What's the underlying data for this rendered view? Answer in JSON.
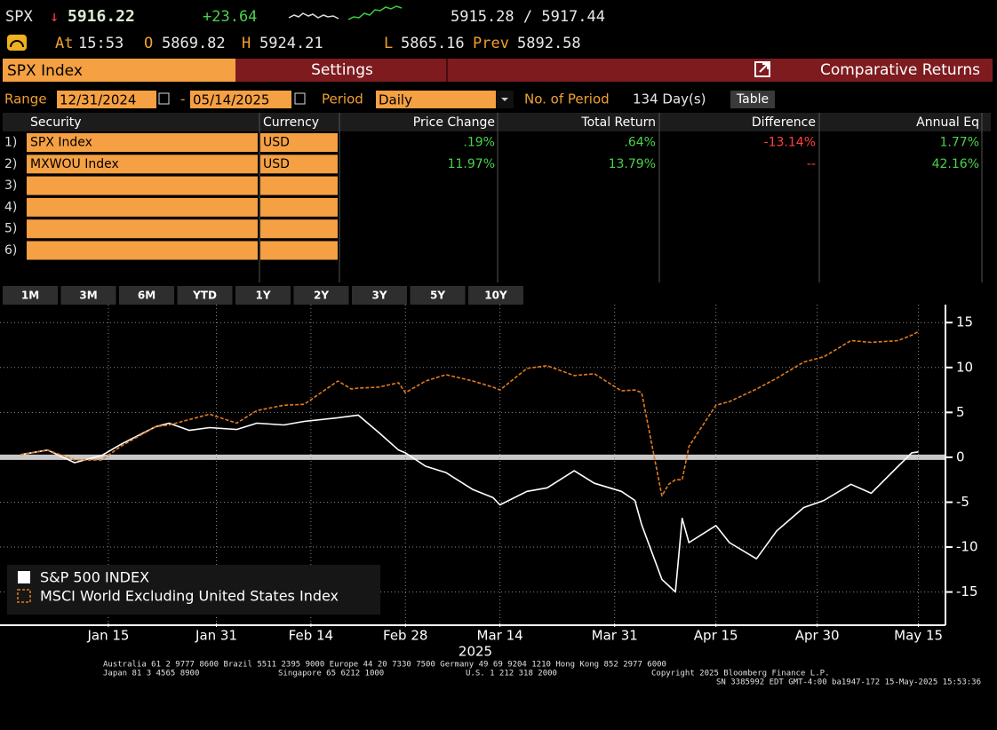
{
  "header": {
    "ticker": "SPX",
    "direction": "↓",
    "last": "5916.22",
    "change": "+23.64",
    "bid_ask": "5915.28 / 5917.44",
    "time_label": "At",
    "time": "15:53",
    "open_label": "O",
    "open": "5869.82",
    "high_label": "H",
    "high": "5924.21",
    "low_label": "L",
    "low": "5865.16",
    "prev_label": "Prev",
    "prev": "5892.58"
  },
  "toolbar": {
    "security_tab": "SPX Index",
    "settings_tab": "Settings",
    "function_title": "Comparative Returns"
  },
  "controls": {
    "range_label": "Range",
    "start_date": "12/31/2024",
    "range_separator": "-",
    "end_date": "05/14/2025",
    "period_label": "Period",
    "period": "Daily",
    "periods_label": "No. of Period",
    "periods": "134 Day(s)",
    "table_button": "Table"
  },
  "table": {
    "columns": [
      "Security",
      "Currency",
      "Price Change",
      "Total Return",
      "Difference",
      "Annual Eq"
    ],
    "rows": [
      {
        "num": "1)",
        "security": "SPX Index",
        "currency": "USD",
        "price_change": ".19%",
        "total_return": ".64%",
        "difference": "-13.14%",
        "annual_eq": "1.77%"
      },
      {
        "num": "2)",
        "security": "MXWOU Index",
        "currency": "USD",
        "price_change": "11.97%",
        "total_return": "13.79%",
        "difference": "--",
        "annual_eq": "42.16%"
      },
      {
        "num": "3)"
      },
      {
        "num": "4)"
      },
      {
        "num": "5)"
      },
      {
        "num": "6)"
      }
    ]
  },
  "range_buttons": [
    "1M",
    "3M",
    "6M",
    "YTD",
    "1Y",
    "2Y",
    "3Y",
    "5Y",
    "10Y"
  ],
  "chart_data": {
    "type": "line",
    "x": [
      "2025-01-02",
      "2025-01-06",
      "2025-01-10",
      "2025-01-14",
      "2025-01-17",
      "2025-01-22",
      "2025-01-24",
      "2025-01-27",
      "2025-01-30",
      "2025-02-03",
      "2025-02-06",
      "2025-02-10",
      "2025-02-13",
      "2025-02-18",
      "2025-02-20",
      "2025-02-21",
      "2025-02-24",
      "2025-02-27",
      "2025-02-28",
      "2025-03-03",
      "2025-03-06",
      "2025-03-10",
      "2025-03-13",
      "2025-03-14",
      "2025-03-18",
      "2025-03-21",
      "2025-03-25",
      "2025-03-28",
      "2025-04-01",
      "2025-04-03",
      "2025-04-04",
      "2025-04-07",
      "2025-04-08",
      "2025-04-09",
      "2025-04-10",
      "2025-04-11",
      "2025-04-15",
      "2025-04-17",
      "2025-04-21",
      "2025-04-24",
      "2025-04-28",
      "2025-05-01",
      "2025-05-05",
      "2025-05-08",
      "2025-05-12",
      "2025-05-14",
      "2025-05-15"
    ],
    "series": [
      {
        "name": "S&P 500 INDEX",
        "color": "#ffffff",
        "style": "solid",
        "values": [
          0.3,
          0.8,
          -0.6,
          0.2,
          1.5,
          3.4,
          3.8,
          3.0,
          3.3,
          3.1,
          3.8,
          3.6,
          4.0,
          4.4,
          4.6,
          4.7,
          2.8,
          0.8,
          0.5,
          -1.0,
          -1.7,
          -3.6,
          -4.5,
          -5.3,
          -3.8,
          -3.4,
          -1.5,
          -2.9,
          -3.8,
          -4.8,
          -7.5,
          -13.6,
          -14.3,
          -15.0,
          -6.8,
          -9.5,
          -7.6,
          -9.5,
          -11.3,
          -8.2,
          -5.6,
          -4.8,
          -3.0,
          -4.0,
          -1.0,
          0.5,
          0.6
        ]
      },
      {
        "name": "MSCI World Excluding United States Index",
        "color": "#e07b22",
        "style": "dashed",
        "values": [
          0.3,
          0.8,
          -0.3,
          -0.3,
          1.3,
          3.4,
          3.6,
          4.2,
          4.8,
          3.8,
          5.2,
          5.8,
          5.9,
          8.5,
          7.6,
          7.7,
          7.8,
          8.3,
          7.2,
          8.5,
          9.2,
          8.5,
          7.8,
          7.5,
          9.9,
          10.2,
          9.1,
          9.3,
          7.4,
          7.5,
          7.2,
          -4.3,
          -3.0,
          -2.5,
          -2.5,
          1.2,
          5.8,
          6.2,
          7.6,
          8.8,
          10.6,
          11.2,
          13.0,
          12.8,
          13.0,
          13.6,
          14.0
        ]
      }
    ],
    "xlim": [
      "2024-12-31",
      "2025-05-19"
    ],
    "xticks": [
      {
        "value": "2025-01-15",
        "label": "Jan 15"
      },
      {
        "value": "2025-01-31",
        "label": "Jan 31"
      },
      {
        "value": "2025-02-14",
        "label": "Feb 14"
      },
      {
        "value": "2025-02-28",
        "label": "Feb 28"
      },
      {
        "value": "2025-03-14",
        "label": "Mar 14"
      },
      {
        "value": "2025-03-31",
        "label": "Mar 31"
      },
      {
        "value": "2025-04-15",
        "label": "Apr 15"
      },
      {
        "value": "2025-04-30",
        "label": "Apr 30"
      },
      {
        "value": "2025-05-15",
        "label": "May 15"
      }
    ],
    "xlabel": "2025",
    "ylim": [
      -18.5,
      17
    ],
    "yticks": [
      15,
      10,
      5,
      0,
      -5,
      -10,
      -15
    ],
    "grid": true,
    "legend": "lower left"
  },
  "footer": {
    "line1": "Australia 61 2 9777 8600 Brazil 5511 2395 9000 Europe 44 20 7330 7500 Germany 49 69 9204 1210 Hong Kong 852 2977 6000",
    "japan": "Japan 81 3 4565 8900",
    "singapore": "Singapore 65 6212 1000",
    "us": "U.S. 1 212 318 2000",
    "copyright": "Copyright 2025 Bloomberg Finance L.P.",
    "session": "SN 3385992 EDT  GMT-4:00 ba1947-172 15-May-2025 15:53:36"
  }
}
